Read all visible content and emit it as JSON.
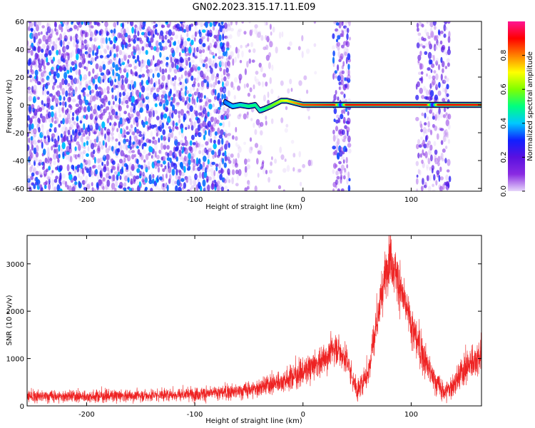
{
  "title": "GN02.2023.315.17.11.E09",
  "chart_data": [
    {
      "type": "heatmap",
      "xlabel": "Height of straight line (km)",
      "ylabel": "Frequency (Hz)",
      "xlim": [
        -255,
        165
      ],
      "ylim": [
        -62,
        60
      ],
      "xticks": [
        -200,
        -100,
        0,
        100
      ],
      "yticks": [
        60,
        40,
        20,
        0,
        -20,
        -40,
        -60
      ],
      "colorbar": {
        "label": "Normalized spectral amplitude",
        "range": [
          0,
          1
        ],
        "ticks": [
          "0.0",
          "0.2",
          "0.4",
          "0.6",
          "0.8"
        ],
        "tick_values": [
          0.0,
          0.2,
          0.4,
          0.6,
          0.8
        ],
        "colors": [
          "#e6d6fa",
          "#8a2be2",
          "#5a10e0",
          "#1020ff",
          "#00c8ff",
          "#00ff80",
          "#80ff00",
          "#ffff00",
          "#ff8000",
          "#ff0000",
          "#ff1493"
        ]
      },
      "noise_regions": [
        {
          "x": [
            -255,
            -70
          ],
          "density": 0.85,
          "max_amp": 0.4
        },
        {
          "x": [
            -70,
            -30
          ],
          "density": 0.25,
          "max_amp": 0.15
        },
        {
          "x": [
            -30,
            10
          ],
          "density": 0.12,
          "max_amp": 0.1
        },
        {
          "x": [
            28,
            42
          ],
          "density": 0.8,
          "max_amp": 0.35
        },
        {
          "x": [
            105,
            135
          ],
          "density": 0.6,
          "max_amp": 0.3
        }
      ],
      "ridge": {
        "x": [
          -72,
          -65,
          -58,
          -50,
          -44,
          -40,
          -36,
          -30,
          -25,
          -20,
          -15,
          -10,
          -5,
          0,
          30,
          35,
          40,
          115,
          120,
          125,
          165
        ],
        "y": [
          2,
          -1,
          0,
          -1,
          0,
          -4,
          -3,
          -1,
          1,
          3,
          3,
          2,
          1,
          0,
          0,
          0,
          0,
          0,
          0,
          0,
          0
        ],
        "amp": [
          0.35,
          0.4,
          0.45,
          0.5,
          0.5,
          0.45,
          0.5,
          0.55,
          0.6,
          0.65,
          0.7,
          0.75,
          0.8,
          0.85,
          0.9,
          0.2,
          0.9,
          0.9,
          0.2,
          0.9,
          0.9
        ]
      }
    },
    {
      "type": "line",
      "xlabel": "Height of straight line (km)",
      "ylabel": "SNR (10 * v/v)",
      "xlim": [
        -255,
        165
      ],
      "ylim": [
        0,
        3600
      ],
      "xticks": [
        -200,
        -100,
        0,
        100
      ],
      "yticks": [
        0,
        1000,
        2000,
        3000
      ],
      "color": "#ee2222",
      "series": [
        {
          "x": [
            -255,
            -200,
            -150,
            -100,
            -60,
            -40,
            -20,
            0,
            20,
            30,
            40,
            50,
            60,
            70,
            80,
            90,
            100,
            110,
            120,
            130,
            140,
            150,
            165
          ],
          "y": [
            200,
            200,
            220,
            250,
            300,
            380,
            520,
            700,
            1000,
            1250,
            1000,
            300,
            700,
            2000,
            3200,
            2500,
            1700,
            1100,
            600,
            280,
            450,
            800,
            1100
          ],
          "noise": [
            120,
            120,
            120,
            130,
            150,
            180,
            220,
            260,
            300,
            320,
            300,
            200,
            300,
            420,
            480,
            450,
            420,
            360,
            260,
            200,
            250,
            330,
            380
          ]
        }
      ]
    }
  ]
}
